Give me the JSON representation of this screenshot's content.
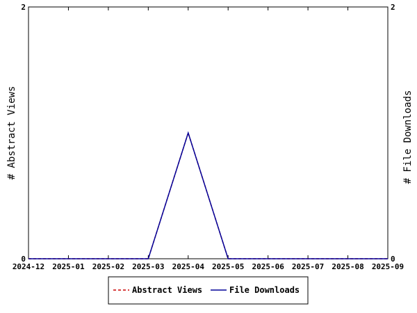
{
  "chart_data": {
    "type": "line",
    "title": "",
    "categories": [
      "2024-12",
      "2025-01",
      "2025-02",
      "2025-03",
      "2025-04",
      "2025-05",
      "2025-06",
      "2025-07",
      "2025-08",
      "2025-09"
    ],
    "series": [
      {
        "name": "Abstract Views",
        "axis": "left",
        "color": "#cc0000",
        "dash": "dashed",
        "values": [
          0,
          0,
          0,
          0,
          1,
          0,
          0,
          0,
          0,
          0
        ]
      },
      {
        "name": "File Downloads",
        "axis": "right",
        "color": "#000099",
        "dash": "solid",
        "values": [
          0,
          0,
          0,
          0,
          1,
          0,
          0,
          0,
          0,
          0
        ]
      }
    ],
    "ylabel": "# Abstract Views",
    "y2label": "# File Downloads",
    "ylim": [
      0,
      2
    ],
    "y2lim": [
      0,
      2
    ],
    "yticks": [
      "0",
      "2"
    ],
    "y2ticks": [
      "0",
      "2"
    ],
    "grid": false,
    "legend_position": "bottom-center"
  }
}
